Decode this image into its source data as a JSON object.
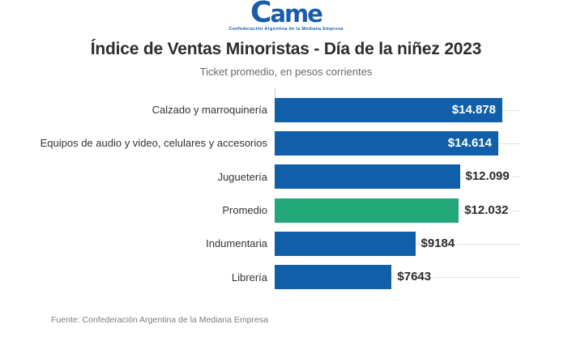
{
  "logo": {
    "wordmark": "Came",
    "tagline": "Confederación Argentina de la Mediana Empresa",
    "color": "#1a5cab"
  },
  "header": {
    "title": "Índice de Ventas Minoristas - Día de la niñez 2023",
    "subtitle": "Ticket promedio, en pesos corrientes"
  },
  "footer": {
    "source": "Fuente: Confederación Argentina de la Mediana Empresa"
  },
  "colors": {
    "bar_blue": "#115fa8",
    "bar_green": "#22a878",
    "value_inside_text": "#ffffff",
    "value_outside_text": "#2b2b2b",
    "track_line": "#e3e3e3"
  },
  "chart_data": {
    "type": "bar",
    "orientation": "horizontal",
    "title": "Índice de Ventas Minoristas - Día de la niñez 2023",
    "subtitle": "Ticket promedio, en pesos corrientes",
    "source": "Fuente: Confederación Argentina de la Mediana Empresa",
    "xlim": [
      0,
      14878
    ],
    "grid": false,
    "legend": "none",
    "categories": [
      "Calzado y marroquinería",
      "Equipos de audio y video, celulares y accesorios",
      "Juguetería",
      "Promedio",
      "Indumentaria",
      "Librería"
    ],
    "values": [
      14878,
      14614,
      12099,
      12032,
      9184,
      7643
    ],
    "value_labels": [
      "$14.878",
      "$14.614",
      "$12.099",
      "$12.032",
      "$9184",
      "$7643"
    ],
    "bar_colors": [
      "#115fa8",
      "#115fa8",
      "#115fa8",
      "#22a878",
      "#115fa8",
      "#115fa8"
    ],
    "highlight_category": "Promedio"
  }
}
